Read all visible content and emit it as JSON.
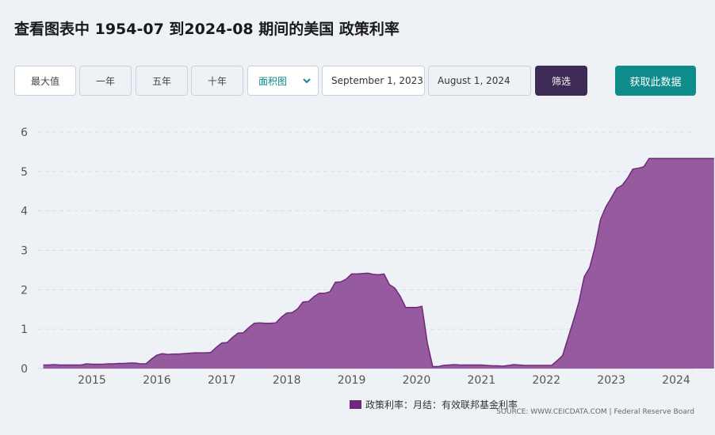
{
  "page": {
    "title": "查看图表中 1954-07 到2024-08 期间的美国 政策利率"
  },
  "controls": {
    "range_buttons": [
      "最大值",
      "一年",
      "五年",
      "十年"
    ],
    "chart_type": "面积图",
    "start_date": "September 1, 2023",
    "end_date": "August 1, 2024",
    "filter_label": "筛选",
    "get_data_label": "获取此数据"
  },
  "colors": {
    "series_fill": "#8c4a96",
    "series_line": "#6e2a7a",
    "filter_button": "#3d2a55",
    "get_data_button": "#0e8c8c"
  },
  "chart_data": {
    "type": "area",
    "ylim": [
      0,
      6
    ],
    "yticks": [
      0,
      1,
      2,
      3,
      4,
      5,
      6
    ],
    "xticks": [
      "2015",
      "2016",
      "2017",
      "2018",
      "2019",
      "2020",
      "2021",
      "2022",
      "2023",
      "2024"
    ],
    "grid": true,
    "legend_position": "bottom",
    "source": "SOURCE: WWW.CEICDATA.COM | Federal Reserve Board",
    "series": [
      {
        "name": "政策利率：月结：有效联邦基金利率",
        "x": [
          "2014-04",
          "2014-05",
          "2014-06",
          "2014-07",
          "2014-08",
          "2014-09",
          "2014-10",
          "2014-11",
          "2014-12",
          "2015-01",
          "2015-02",
          "2015-03",
          "2015-04",
          "2015-05",
          "2015-06",
          "2015-07",
          "2015-08",
          "2015-09",
          "2015-10",
          "2015-11",
          "2015-12",
          "2016-01",
          "2016-02",
          "2016-03",
          "2016-04",
          "2016-05",
          "2016-06",
          "2016-07",
          "2016-08",
          "2016-09",
          "2016-10",
          "2016-11",
          "2016-12",
          "2017-01",
          "2017-02",
          "2017-03",
          "2017-04",
          "2017-05",
          "2017-06",
          "2017-07",
          "2017-08",
          "2017-09",
          "2017-10",
          "2017-11",
          "2017-12",
          "2018-01",
          "2018-02",
          "2018-03",
          "2018-04",
          "2018-05",
          "2018-06",
          "2018-07",
          "2018-08",
          "2018-09",
          "2018-10",
          "2018-11",
          "2018-12",
          "2019-01",
          "2019-02",
          "2019-03",
          "2019-04",
          "2019-05",
          "2019-06",
          "2019-07",
          "2019-08",
          "2019-09",
          "2019-10",
          "2019-11",
          "2019-12",
          "2020-01",
          "2020-02",
          "2020-03",
          "2020-04",
          "2020-05",
          "2020-06",
          "2020-07",
          "2020-08",
          "2020-09",
          "2020-10",
          "2020-11",
          "2020-12",
          "2021-01",
          "2021-02",
          "2021-03",
          "2021-04",
          "2021-05",
          "2021-06",
          "2021-07",
          "2021-08",
          "2021-09",
          "2021-10",
          "2021-11",
          "2021-12",
          "2022-01",
          "2022-02",
          "2022-03",
          "2022-04",
          "2022-05",
          "2022-06",
          "2022-07",
          "2022-08",
          "2022-09",
          "2022-10",
          "2022-11",
          "2022-12",
          "2023-01",
          "2023-02",
          "2023-03",
          "2023-04",
          "2023-05",
          "2023-06",
          "2023-07",
          "2023-08",
          "2023-09",
          "2023-10",
          "2023-11",
          "2023-12",
          "2024-01",
          "2024-02",
          "2024-03",
          "2024-04",
          "2024-05",
          "2024-06",
          "2024-07",
          "2024-08"
        ],
        "values": [
          0.09,
          0.09,
          0.1,
          0.09,
          0.09,
          0.09,
          0.09,
          0.09,
          0.12,
          0.11,
          0.11,
          0.11,
          0.12,
          0.12,
          0.13,
          0.13,
          0.14,
          0.14,
          0.12,
          0.12,
          0.24,
          0.34,
          0.38,
          0.36,
          0.37,
          0.37,
          0.38,
          0.39,
          0.4,
          0.4,
          0.4,
          0.41,
          0.54,
          0.65,
          0.66,
          0.79,
          0.9,
          0.91,
          1.04,
          1.15,
          1.16,
          1.15,
          1.15,
          1.16,
          1.3,
          1.41,
          1.42,
          1.51,
          1.69,
          1.7,
          1.82,
          1.91,
          1.91,
          1.95,
          2.19,
          2.2,
          2.27,
          2.4,
          2.4,
          2.41,
          2.42,
          2.39,
          2.38,
          2.4,
          2.13,
          2.04,
          1.83,
          1.55,
          1.55,
          1.55,
          1.58,
          0.65,
          0.05,
          0.05,
          0.08,
          0.09,
          0.1,
          0.09,
          0.09,
          0.09,
          0.09,
          0.09,
          0.08,
          0.07,
          0.07,
          0.06,
          0.08,
          0.1,
          0.09,
          0.08,
          0.08,
          0.08,
          0.08,
          0.08,
          0.08,
          0.2,
          0.33,
          0.77,
          1.21,
          1.68,
          2.33,
          2.56,
          3.08,
          3.78,
          4.1,
          4.33,
          4.57,
          4.65,
          4.83,
          5.06,
          5.08,
          5.12,
          5.33,
          5.33,
          5.33,
          5.33,
          5.33,
          5.33,
          5.33,
          5.33,
          5.33,
          5.33,
          5.33,
          5.33,
          5.33
        ]
      }
    ]
  }
}
